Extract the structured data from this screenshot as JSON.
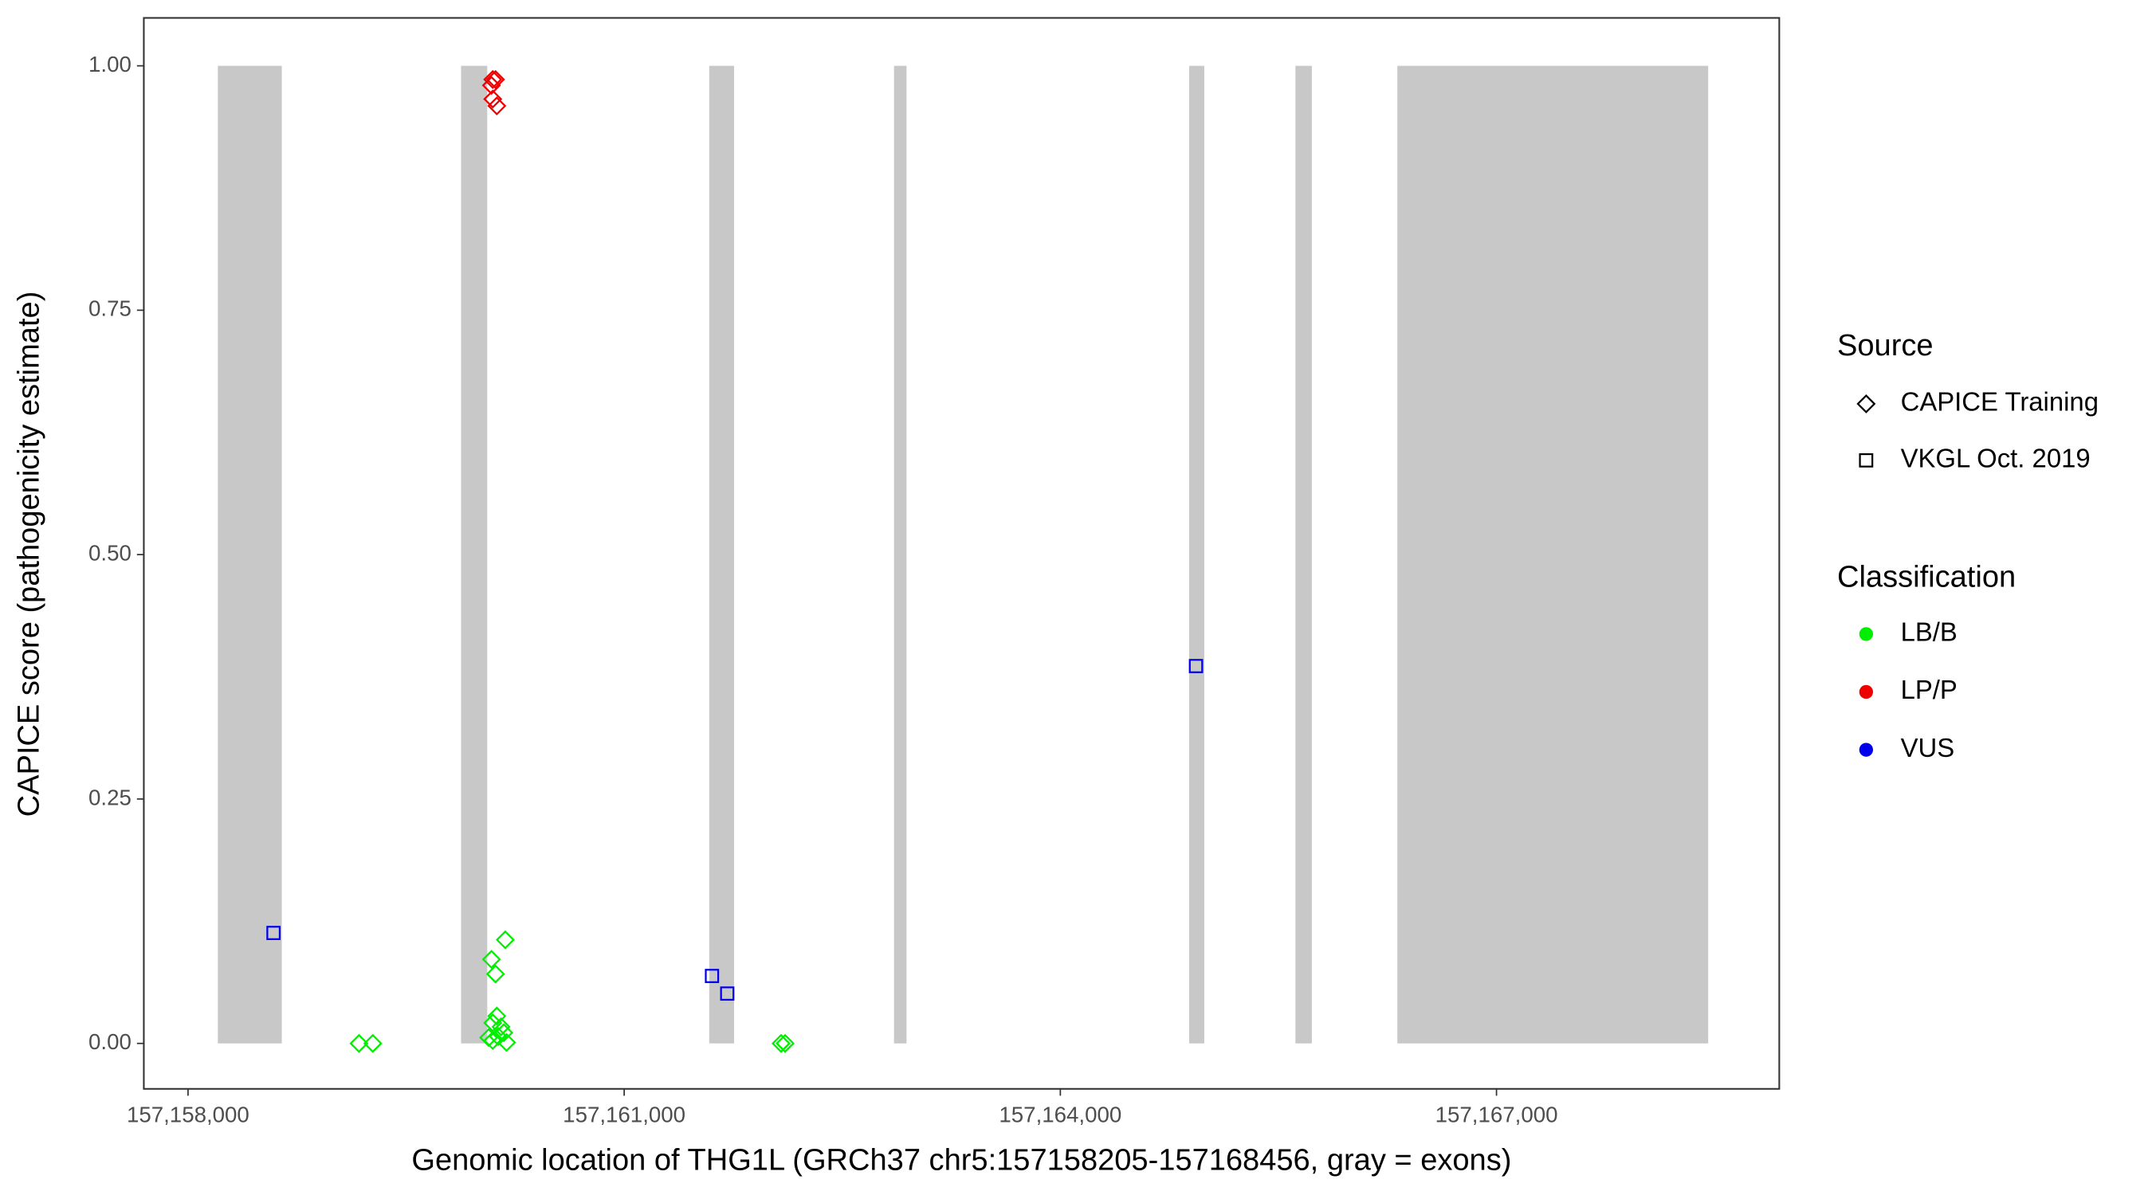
{
  "chart_data": {
    "type": "scatter",
    "xlabel": "Genomic location of THG1L (GRCh37 chr5:157158205-157168456, gray = exons)",
    "ylabel": "CAPICE score (pathogenicity estimate)",
    "xlim": [
      157157696,
      157168945
    ],
    "ylim": [
      -0.0465,
      1.049
    ],
    "xticks": [
      {
        "value": 157158000,
        "label": "157,158,000"
      },
      {
        "value": 157161000,
        "label": "157,161,000"
      },
      {
        "value": 157164000,
        "label": "157,164,000"
      },
      {
        "value": 157167000,
        "label": "157,167,000"
      }
    ],
    "yticks": [
      {
        "value": 0,
        "label": "0.00"
      },
      {
        "value": 0.25,
        "label": "0.25"
      },
      {
        "value": 0.5,
        "label": "0.50"
      },
      {
        "value": 0.75,
        "label": "0.75"
      },
      {
        "value": 1,
        "label": "1.00"
      }
    ],
    "exon_color": "#c8c8c8",
    "exon_y": [
      0,
      1
    ],
    "exons": [
      [
        157158205,
        157158645
      ],
      [
        157159878,
        157160058
      ],
      [
        157161585,
        157161756
      ],
      [
        157162856,
        157162942
      ],
      [
        157164886,
        157164990
      ],
      [
        157165617,
        157165730
      ],
      [
        157166318,
        157168456
      ]
    ],
    "legend": {
      "shape_title": "Source",
      "shapes": [
        {
          "name": "CAPICE Training",
          "shape": "diamond"
        },
        {
          "name": "VKGL Oct. 2019",
          "shape": "square"
        }
      ],
      "color_title": "Classification",
      "colors": [
        {
          "name": "LB/B",
          "color": "#00ee00"
        },
        {
          "name": "LP/P",
          "color": "#ee0000"
        },
        {
          "name": "VUS",
          "color": "#0000ee"
        }
      ]
    },
    "series": [
      {
        "shape": "square",
        "color": "#0000ee",
        "x": [
          157158588,
          157161604,
          157161709,
          157164933
        ],
        "y": [
          0.113,
          0.069,
          0.051,
          0.386
        ]
      },
      {
        "shape": "diamond",
        "color": "#ee0000",
        "x": [
          157160096,
          157160115,
          157160087,
          157160096,
          157160124
        ],
        "y": [
          0.986,
          0.986,
          0.98,
          0.966,
          0.959
        ]
      },
      {
        "shape": "diamond",
        "color": "#00ee00",
        "x": [
          157159176,
          157159271,
          157160182,
          157160087,
          157160115,
          157160124,
          157160096,
          157160153,
          157160172,
          157160134,
          157160068,
          157160191,
          157160096,
          157162079,
          157162107
        ],
        "y": [
          0,
          0,
          0.106,
          0.086,
          0.071,
          0.028,
          0.021,
          0.017,
          0.011,
          0.007,
          0.006,
          0.001,
          0.003,
          0,
          0
        ]
      }
    ]
  }
}
